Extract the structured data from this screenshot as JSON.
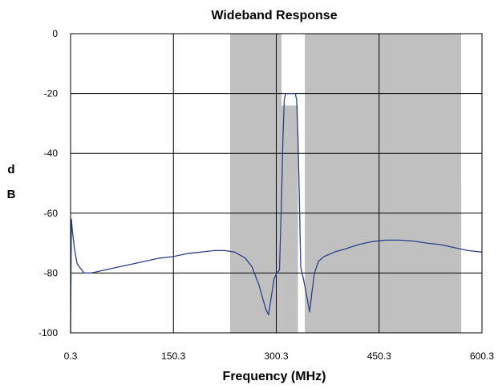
{
  "chart_data": {
    "type": "line",
    "title": "Wideband Response",
    "xlabel": "Frequency (MHz)",
    "ylabel_lines": [
      "d",
      "B"
    ],
    "xlim": [
      0.3,
      600.3
    ],
    "ylim": [
      -100,
      0
    ],
    "x_ticks": [
      0.3,
      150.3,
      300.3,
      450.3,
      600.3
    ],
    "x_tick_labels": [
      "0.3",
      "150.3",
      "300.3",
      "450.3",
      "600.3"
    ],
    "y_ticks": [
      0,
      -20,
      -40,
      -60,
      -80,
      -100
    ],
    "y_tick_labels": [
      "0",
      "-20",
      "-40",
      "-60",
      "-80",
      "-100"
    ],
    "grid": true,
    "mask_color": "#c0c0c0",
    "line_color": "#2b3f8e",
    "mask_regions": [
      {
        "x0": 233,
        "x1": 272,
        "y": -60
      },
      {
        "x0": 272,
        "x1": 298,
        "y": -64.5
      },
      {
        "x0": 308,
        "x1": 332,
        "y": -24
      },
      {
        "x0": 342,
        "x1": 398,
        "y": -64.5
      },
      {
        "x0": 398,
        "x1": 433,
        "y": -60
      },
      {
        "x0": 433,
        "x1": 570,
        "y": -50
      },
      {
        "x0": 233,
        "x1": 308,
        "y": 0
      },
      {
        "x0": 342,
        "x1": 570,
        "y": 0
      }
    ],
    "series": [
      {
        "points": [
          [
            0.3,
            -100
          ],
          [
            1.5,
            -62
          ],
          [
            3,
            -66
          ],
          [
            6,
            -72
          ],
          [
            10,
            -77
          ],
          [
            20,
            -80
          ],
          [
            30,
            -80
          ],
          [
            50,
            -79
          ],
          [
            70,
            -78
          ],
          [
            90,
            -77
          ],
          [
            110,
            -76
          ],
          [
            130,
            -75
          ],
          [
            150,
            -74.5
          ],
          [
            170,
            -73.5
          ],
          [
            190,
            -73
          ],
          [
            210,
            -72.5
          ],
          [
            225,
            -72.5
          ],
          [
            240,
            -73
          ],
          [
            255,
            -75
          ],
          [
            265,
            -78
          ],
          [
            275,
            -84
          ],
          [
            280,
            -88
          ],
          [
            285,
            -92
          ],
          [
            289,
            -94
          ],
          [
            293,
            -88
          ],
          [
            297,
            -82
          ],
          [
            301,
            -80
          ],
          [
            305,
            -79
          ],
          [
            308,
            -55
          ],
          [
            310,
            -35
          ],
          [
            312,
            -22
          ],
          [
            314,
            -20
          ],
          [
            325,
            -20
          ],
          [
            328,
            -20
          ],
          [
            330,
            -22
          ],
          [
            332,
            -35
          ],
          [
            334,
            -55
          ],
          [
            336,
            -78
          ],
          [
            340,
            -82
          ],
          [
            345,
            -88
          ],
          [
            349,
            -93
          ],
          [
            352,
            -87
          ],
          [
            356,
            -80
          ],
          [
            362,
            -76
          ],
          [
            370,
            -74.5
          ],
          [
            385,
            -73
          ],
          [
            400,
            -72
          ],
          [
            420,
            -70.5
          ],
          [
            440,
            -69.5
          ],
          [
            460,
            -69
          ],
          [
            480,
            -69
          ],
          [
            500,
            -69.3
          ],
          [
            520,
            -70
          ],
          [
            540,
            -70.5
          ],
          [
            560,
            -71.5
          ],
          [
            580,
            -72.5
          ],
          [
            600.3,
            -73
          ]
        ]
      }
    ]
  }
}
